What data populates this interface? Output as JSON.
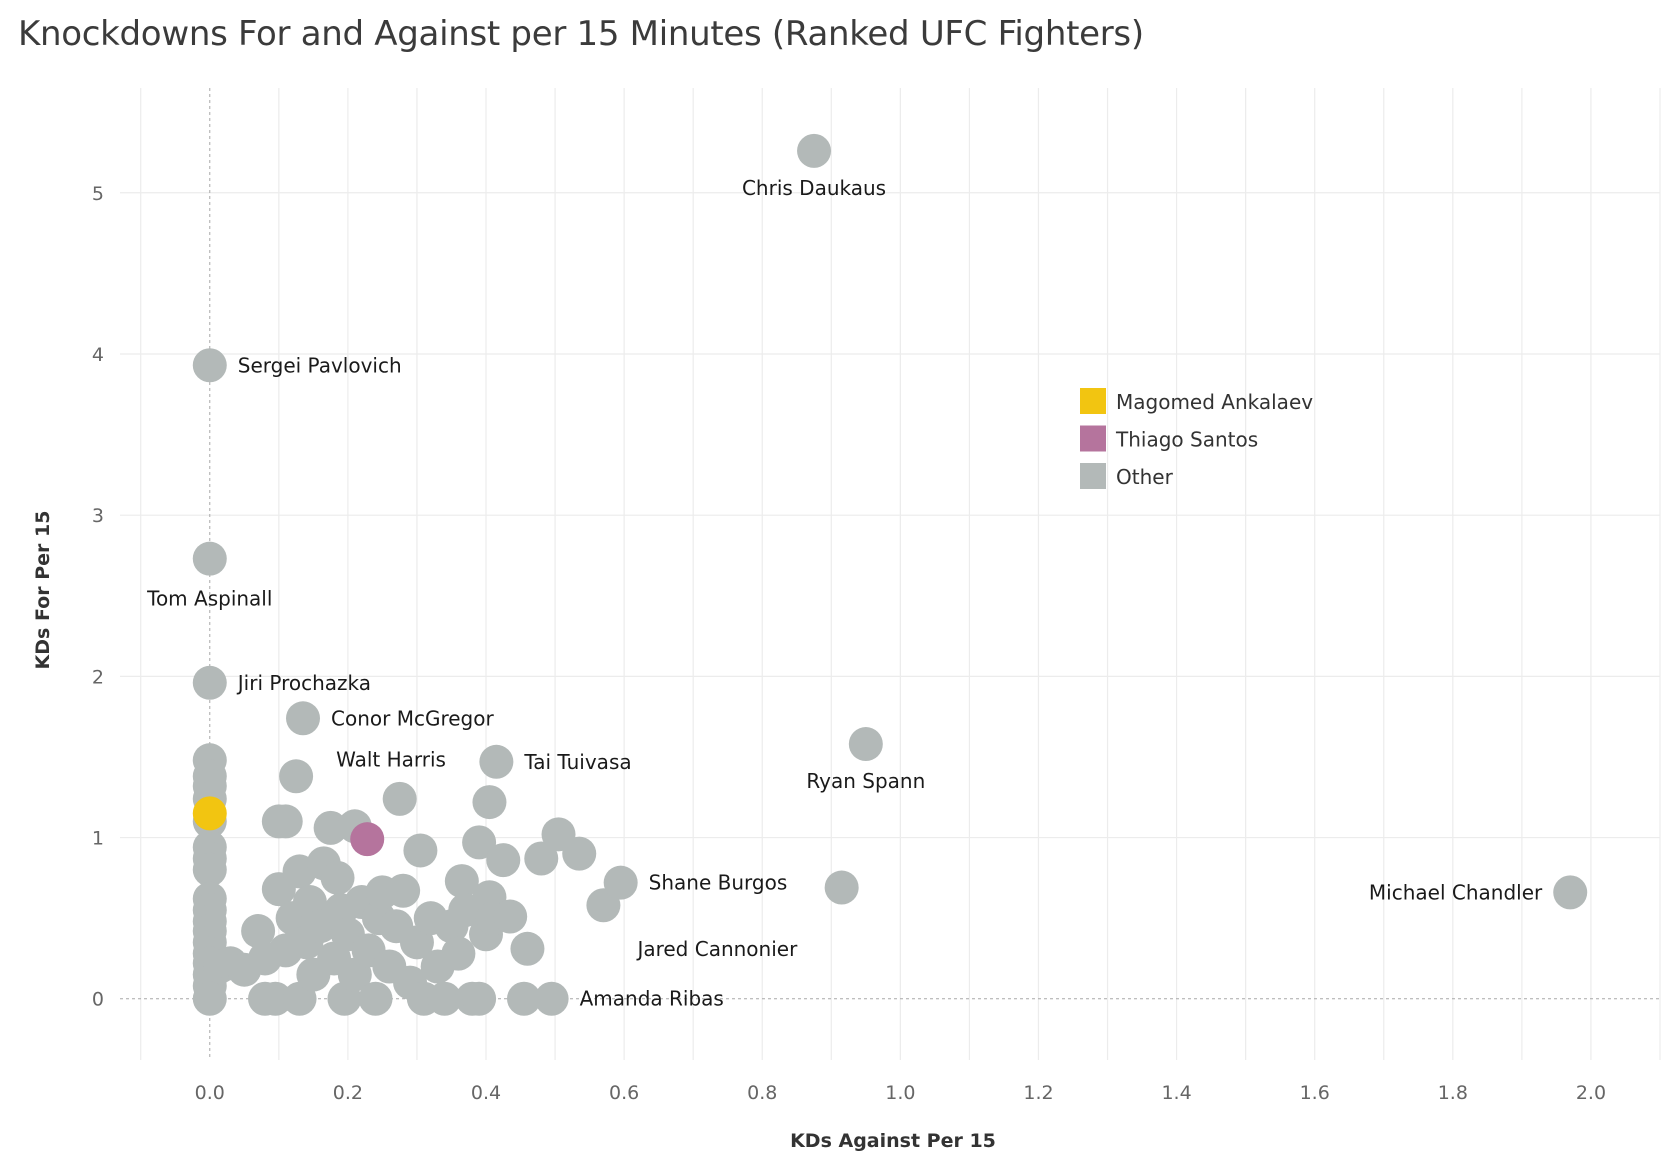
{
  "title": "Knockdowns For and Against per 15 Minutes (Ranked UFC Fighters)",
  "colors": {
    "Magomed Ankalaev": "#f2c511",
    "Thiago Santos": "#b5749d",
    "Other": "#b3b9b8",
    "grid": "#ececec",
    "zero_line": "#a8a8a8"
  },
  "chart_data": {
    "type": "scatter",
    "title": "Knockdowns For and Against per 15 Minutes (Ranked UFC Fighters)",
    "xlabel": "KDs Against Per 15",
    "ylabel": "KDs For Per 15",
    "xlim": [
      -0.13,
      2.1
    ],
    "ylim": [
      -0.38,
      5.65
    ],
    "xticks": [
      "0.0",
      "0.2",
      "0.4",
      "0.6",
      "0.8",
      "1.0",
      "1.2",
      "1.4",
      "1.6",
      "1.8",
      "2.0"
    ],
    "yticks": [
      "0",
      "1",
      "2",
      "3",
      "4",
      "5"
    ],
    "grid": true,
    "legend": {
      "position": "right",
      "entries": [
        "Magomed Ankalaev",
        "Thiago Santos",
        "Other"
      ]
    },
    "labeled_points": [
      {
        "name": "Chris Daukaus",
        "x": 0.875,
        "y": 5.26,
        "group": "Other"
      },
      {
        "name": "Sergei Pavlovich",
        "x": 0.0,
        "y": 3.93,
        "group": "Other"
      },
      {
        "name": "Tom Aspinall",
        "x": 0.0,
        "y": 2.73,
        "group": "Other"
      },
      {
        "name": "Jiri Prochazka",
        "x": 0.0,
        "y": 1.96,
        "group": "Other"
      },
      {
        "name": "Conor McGregor",
        "x": 0.135,
        "y": 1.74,
        "group": "Other"
      },
      {
        "name": "Walt Harris",
        "x": 0.125,
        "y": 1.38,
        "group": "Other"
      },
      {
        "name": "Tai Tuivasa",
        "x": 0.415,
        "y": 1.47,
        "group": "Other"
      },
      {
        "name": "Ryan Spann",
        "x": 0.95,
        "y": 1.58,
        "group": "Other"
      },
      {
        "name": "Shane Burgos",
        "x": 0.595,
        "y": 0.72,
        "group": "Other"
      },
      {
        "name": "Michael Chandler",
        "x": 1.97,
        "y": 0.66,
        "group": "Other"
      },
      {
        "name": "Jared Cannonier",
        "x": 0.46,
        "y": 0.31,
        "group": "Other"
      },
      {
        "name": "Amanda Ribas",
        "x": 0.495,
        "y": 0.0,
        "group": "Other"
      }
    ],
    "highlighted_points": [
      {
        "name": "Magomed Ankalaev",
        "x": 0.0,
        "y": 1.15
      },
      {
        "name": "Thiago Santos",
        "x": 0.228,
        "y": 0.99
      }
    ],
    "other_points": [
      {
        "x": 0.0,
        "y": 1.48
      },
      {
        "x": 0.0,
        "y": 1.38
      },
      {
        "x": 0.0,
        "y": 1.32
      },
      {
        "x": 0.0,
        "y": 1.24
      },
      {
        "x": 0.0,
        "y": 1.1
      },
      {
        "x": 0.0,
        "y": 0.94
      },
      {
        "x": 0.0,
        "y": 0.87
      },
      {
        "x": 0.0,
        "y": 0.8
      },
      {
        "x": 0.0,
        "y": 0.62
      },
      {
        "x": 0.0,
        "y": 0.55
      },
      {
        "x": 0.0,
        "y": 0.48
      },
      {
        "x": 0.0,
        "y": 0.42
      },
      {
        "x": 0.0,
        "y": 0.35
      },
      {
        "x": 0.0,
        "y": 0.28
      },
      {
        "x": 0.0,
        "y": 0.22
      },
      {
        "x": 0.0,
        "y": 0.15
      },
      {
        "x": 0.0,
        "y": 0.08
      },
      {
        "x": 0.0,
        "y": 0.0
      },
      {
        "x": 0.015,
        "y": 0.2
      },
      {
        "x": 0.03,
        "y": 0.22
      },
      {
        "x": 0.05,
        "y": 0.18
      },
      {
        "x": 0.07,
        "y": 0.42
      },
      {
        "x": 0.08,
        "y": 0.25
      },
      {
        "x": 0.08,
        "y": 0.0
      },
      {
        "x": 0.095,
        "y": 0.0
      },
      {
        "x": 0.1,
        "y": 0.68
      },
      {
        "x": 0.1,
        "y": 1.1
      },
      {
        "x": 0.11,
        "y": 1.1
      },
      {
        "x": 0.11,
        "y": 0.3
      },
      {
        "x": 0.12,
        "y": 0.5
      },
      {
        "x": 0.13,
        "y": 0.79
      },
      {
        "x": 0.13,
        "y": 0.0
      },
      {
        "x": 0.14,
        "y": 0.35
      },
      {
        "x": 0.145,
        "y": 0.6
      },
      {
        "x": 0.15,
        "y": 0.15
      },
      {
        "x": 0.16,
        "y": 0.45
      },
      {
        "x": 0.165,
        "y": 0.84
      },
      {
        "x": 0.175,
        "y": 1.06
      },
      {
        "x": 0.18,
        "y": 0.25
      },
      {
        "x": 0.185,
        "y": 0.75
      },
      {
        "x": 0.19,
        "y": 0.55
      },
      {
        "x": 0.195,
        "y": 0.0
      },
      {
        "x": 0.2,
        "y": 0.4
      },
      {
        "x": 0.21,
        "y": 1.07
      },
      {
        "x": 0.21,
        "y": 0.15
      },
      {
        "x": 0.22,
        "y": 0.6
      },
      {
        "x": 0.23,
        "y": 0.3
      },
      {
        "x": 0.24,
        "y": 0.0
      },
      {
        "x": 0.245,
        "y": 0.5
      },
      {
        "x": 0.25,
        "y": 0.66
      },
      {
        "x": 0.26,
        "y": 0.2
      },
      {
        "x": 0.27,
        "y": 0.45
      },
      {
        "x": 0.275,
        "y": 1.24
      },
      {
        "x": 0.28,
        "y": 0.67
      },
      {
        "x": 0.29,
        "y": 0.1
      },
      {
        "x": 0.3,
        "y": 0.35
      },
      {
        "x": 0.305,
        "y": 0.92
      },
      {
        "x": 0.31,
        "y": 0.0
      },
      {
        "x": 0.32,
        "y": 0.5
      },
      {
        "x": 0.33,
        "y": 0.2
      },
      {
        "x": 0.34,
        "y": 0.0
      },
      {
        "x": 0.35,
        "y": 0.45
      },
      {
        "x": 0.36,
        "y": 0.28
      },
      {
        "x": 0.365,
        "y": 0.73
      },
      {
        "x": 0.37,
        "y": 0.55
      },
      {
        "x": 0.38,
        "y": 0.0
      },
      {
        "x": 0.39,
        "y": 0.0
      },
      {
        "x": 0.39,
        "y": 0.97
      },
      {
        "x": 0.4,
        "y": 0.4
      },
      {
        "x": 0.405,
        "y": 0.63
      },
      {
        "x": 0.405,
        "y": 1.22
      },
      {
        "x": 0.41,
        "y": 0.5
      },
      {
        "x": 0.425,
        "y": 0.86
      },
      {
        "x": 0.435,
        "y": 0.51
      },
      {
        "x": 0.455,
        "y": 0.0
      },
      {
        "x": 0.48,
        "y": 0.87
      },
      {
        "x": 0.505,
        "y": 1.02
      },
      {
        "x": 0.535,
        "y": 0.9
      },
      {
        "x": 0.57,
        "y": 0.58
      },
      {
        "x": 0.915,
        "y": 0.69
      }
    ]
  }
}
